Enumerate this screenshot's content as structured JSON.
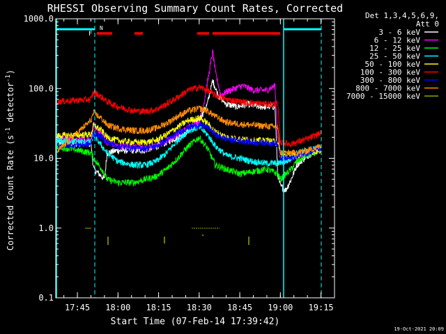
{
  "chart_data": {
    "type": "line",
    "title": "RHESSI Observing Summary Count Rates, Corrected",
    "xlabel": "Start Time (07-Feb-14 17:39:42)",
    "ylabel": "Corrected Count Rate (s⁻¹ detector⁻¹)",
    "ylabel_parts": {
      "main": "Corrected Count Rate (s",
      "exp": "-1",
      "mid": " detector",
      "exp2": "-1",
      "end": ")"
    },
    "yscale": "log",
    "ylim": [
      0.1,
      1000
    ],
    "y_ticks": [
      {
        "value": 1000,
        "label": "1000.0"
      },
      {
        "value": 100,
        "label": "100.0"
      },
      {
        "value": 10,
        "label": "10.0"
      },
      {
        "value": 1,
        "label": "1.0"
      },
      {
        "value": 0.1,
        "label": "0.1"
      }
    ],
    "x_range_min": [
      -3,
      100
    ],
    "x_ticks": [
      {
        "value": 5,
        "label": "17:45"
      },
      {
        "value": 20,
        "label": "18:00"
      },
      {
        "value": 35,
        "label": "18:15"
      },
      {
        "value": 50,
        "label": "18:30"
      },
      {
        "value": 65,
        "label": "18:45"
      },
      {
        "value": 80,
        "label": "19:00"
      },
      {
        "value": 95,
        "label": "19:15"
      }
    ],
    "legend": {
      "header": [
        "Det 1,3,4,5,6,9,",
        "Att 0"
      ],
      "position": "right"
    },
    "series": [
      {
        "name": "3 - 6 keV",
        "color": "#ffffff",
        "points": [
          [
            -3,
            17
          ],
          [
            10,
            16
          ],
          [
            11,
            7
          ],
          [
            13,
            6
          ],
          [
            15,
            5
          ],
          [
            16,
            12
          ],
          [
            20,
            13
          ],
          [
            30,
            13
          ],
          [
            38,
            17
          ],
          [
            44,
            22
          ],
          [
            48,
            30
          ],
          [
            50,
            35
          ],
          [
            53,
            60
          ],
          [
            55,
            130
          ],
          [
            57,
            80
          ],
          [
            60,
            60
          ],
          [
            64,
            55
          ],
          [
            68,
            60
          ],
          [
            72,
            55
          ],
          [
            78,
            55
          ],
          [
            79,
            6
          ],
          [
            80,
            4
          ],
          [
            82,
            3.5
          ],
          [
            84,
            5
          ],
          [
            86,
            8
          ],
          [
            90,
            11
          ],
          [
            95,
            14
          ]
        ]
      },
      {
        "name": "6 - 12 keV",
        "color": "#ff00ff",
        "points": [
          [
            -3,
            20
          ],
          [
            10,
            18
          ],
          [
            11,
            30
          ],
          [
            14,
            22
          ],
          [
            16,
            17
          ],
          [
            20,
            15
          ],
          [
            26,
            15
          ],
          [
            30,
            14
          ],
          [
            34,
            15
          ],
          [
            40,
            20
          ],
          [
            46,
            28
          ],
          [
            50,
            33
          ],
          [
            52,
            70
          ],
          [
            54,
            200
          ],
          [
            55,
            340
          ],
          [
            56,
            170
          ],
          [
            58,
            80
          ],
          [
            60,
            90
          ],
          [
            63,
            100
          ],
          [
            66,
            110
          ],
          [
            70,
            95
          ],
          [
            75,
            95
          ],
          [
            78,
            110
          ],
          [
            79,
            20
          ],
          [
            80,
            10
          ],
          [
            82,
            9
          ],
          [
            84,
            10
          ],
          [
            86,
            11
          ],
          [
            90,
            12
          ],
          [
            95,
            14
          ]
        ]
      },
      {
        "name": "12 - 25 keV",
        "color": "#00ff00",
        "points": [
          [
            -3,
            15
          ],
          [
            10,
            12
          ],
          [
            11,
            10
          ],
          [
            14,
            7
          ],
          [
            16,
            5
          ],
          [
            20,
            4.5
          ],
          [
            26,
            4.5
          ],
          [
            30,
            5
          ],
          [
            34,
            5.5
          ],
          [
            38,
            7
          ],
          [
            42,
            10
          ],
          [
            46,
            15
          ],
          [
            50,
            20
          ],
          [
            53,
            14
          ],
          [
            56,
            8
          ],
          [
            60,
            7
          ],
          [
            65,
            6
          ],
          [
            70,
            6.5
          ],
          [
            75,
            7
          ],
          [
            79,
            6
          ],
          [
            80,
            5
          ],
          [
            84,
            7
          ],
          [
            86,
            9
          ],
          [
            90,
            11
          ],
          [
            95,
            13
          ]
        ]
      },
      {
        "name": "25 - 50 keV",
        "color": "#00ffff",
        "points": [
          [
            -3,
            18
          ],
          [
            10,
            17
          ],
          [
            11,
            22
          ],
          [
            14,
            15
          ],
          [
            16,
            12
          ],
          [
            20,
            9
          ],
          [
            26,
            8
          ],
          [
            30,
            8
          ],
          [
            34,
            9
          ],
          [
            38,
            12
          ],
          [
            42,
            18
          ],
          [
            46,
            25
          ],
          [
            50,
            28
          ],
          [
            53,
            22
          ],
          [
            56,
            15
          ],
          [
            60,
            11
          ],
          [
            65,
            10
          ],
          [
            70,
            9
          ],
          [
            75,
            8.5
          ],
          [
            79,
            8.5
          ],
          [
            82,
            9
          ],
          [
            84,
            10
          ],
          [
            86,
            12
          ],
          [
            90,
            13
          ],
          [
            95,
            14
          ]
        ]
      },
      {
        "name": "50 - 100 keV",
        "color": "#ffff00",
        "points": [
          [
            -3,
            21
          ],
          [
            10,
            22
          ],
          [
            11,
            30
          ],
          [
            14,
            25
          ],
          [
            16,
            20
          ],
          [
            20,
            18
          ],
          [
            26,
            17
          ],
          [
            30,
            17
          ],
          [
            34,
            18
          ],
          [
            38,
            22
          ],
          [
            42,
            28
          ],
          [
            46,
            35
          ],
          [
            50,
            38
          ],
          [
            53,
            32
          ],
          [
            56,
            24
          ],
          [
            60,
            20
          ],
          [
            65,
            19
          ],
          [
            70,
            18
          ],
          [
            75,
            18
          ],
          [
            79,
            17
          ],
          [
            80,
            11
          ],
          [
            84,
            11
          ],
          [
            86,
            11
          ],
          [
            90,
            12
          ],
          [
            95,
            13
          ]
        ]
      },
      {
        "name": "100 - 300 keV",
        "color": "#ff0000",
        "points": [
          [
            -3,
            65
          ],
          [
            10,
            70
          ],
          [
            11,
            90
          ],
          [
            14,
            75
          ],
          [
            16,
            65
          ],
          [
            20,
            55
          ],
          [
            26,
            48
          ],
          [
            30,
            47
          ],
          [
            34,
            50
          ],
          [
            38,
            60
          ],
          [
            42,
            75
          ],
          [
            46,
            95
          ],
          [
            50,
            105
          ],
          [
            53,
            95
          ],
          [
            56,
            80
          ],
          [
            60,
            70
          ],
          [
            65,
            65
          ],
          [
            70,
            62
          ],
          [
            75,
            60
          ],
          [
            79,
            60
          ],
          [
            80,
            17
          ],
          [
            84,
            16
          ],
          [
            86,
            17
          ],
          [
            90,
            19
          ],
          [
            95,
            23
          ]
        ]
      },
      {
        "name": "300 - 800 keV",
        "color": "#0000ff",
        "points": [
          [
            -3,
            15
          ],
          [
            10,
            16
          ],
          [
            11,
            23
          ],
          [
            14,
            20
          ],
          [
            16,
            17
          ],
          [
            20,
            15
          ],
          [
            26,
            14
          ],
          [
            30,
            14
          ],
          [
            34,
            15
          ],
          [
            38,
            18
          ],
          [
            42,
            23
          ],
          [
            46,
            28
          ],
          [
            50,
            30
          ],
          [
            53,
            28
          ],
          [
            56,
            22
          ],
          [
            60,
            19
          ],
          [
            65,
            18
          ],
          [
            70,
            17
          ],
          [
            75,
            17
          ],
          [
            79,
            16
          ],
          [
            80,
            10
          ],
          [
            84,
            10
          ],
          [
            86,
            11
          ],
          [
            90,
            12
          ],
          [
            95,
            14
          ]
        ]
      },
      {
        "name": "800 - 7000 keV",
        "color": "#ff8c00",
        "points": [
          [
            -3,
            12
          ],
          [
            10,
            35
          ],
          [
            11,
            45
          ],
          [
            14,
            37
          ],
          [
            16,
            30
          ],
          [
            20,
            27
          ],
          [
            26,
            25
          ],
          [
            30,
            25
          ],
          [
            34,
            27
          ],
          [
            38,
            32
          ],
          [
            42,
            40
          ],
          [
            46,
            48
          ],
          [
            50,
            52
          ],
          [
            53,
            48
          ],
          [
            56,
            40
          ],
          [
            60,
            33
          ],
          [
            65,
            31
          ],
          [
            70,
            30
          ],
          [
            75,
            29
          ],
          [
            79,
            28
          ],
          [
            80,
            12
          ],
          [
            84,
            12
          ],
          [
            86,
            12
          ],
          [
            90,
            13
          ],
          [
            95,
            15
          ]
        ]
      },
      {
        "name": "7000 - 15000 keV",
        "color": "#a0a000",
        "points": []
      }
    ],
    "special_marks": {
      "att_line_color": "#00ffff",
      "flag_bar_color": "#ff0000",
      "flag_letters": [
        "F",
        "N"
      ],
      "olive_marks_color": "#a0a000"
    }
  },
  "footer": {
    "datestamp": "19-Oct-2021 20:09"
  }
}
